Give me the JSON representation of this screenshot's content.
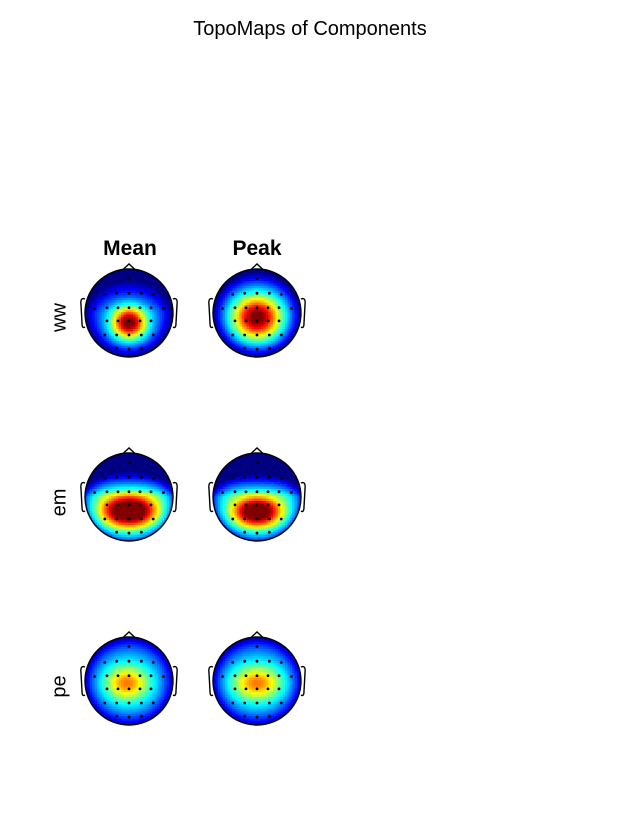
{
  "title": "TopoMaps of Components",
  "columns": [
    "Mean",
    "Peak"
  ],
  "rows": [
    {
      "label": "ww",
      "maps": [
        {
          "colormap": "jet",
          "sources": [
            {
              "u": 0.0,
              "v": 0.22,
              "sx": 0.38,
              "sy": 0.36,
              "amp": 1.0
            }
          ],
          "base": 0.32,
          "frontal_drop": 0.18
        },
        {
          "colormap": "jet",
          "sources": [
            {
              "u": 0.0,
              "v": 0.1,
              "sx": 0.55,
              "sy": 0.5,
              "amp": 1.0
            }
          ],
          "base": 0.3,
          "frontal_drop": 0.05
        }
      ]
    },
    {
      "label": "em",
      "maps": [
        {
          "colormap": "jet",
          "sources": [
            {
              "u": 0.0,
              "v": 0.32,
              "sx": 0.62,
              "sy": 0.36,
              "amp": 1.0
            }
          ],
          "base": 0.55,
          "frontal_drop": 0.55
        },
        {
          "colormap": "jet",
          "sources": [
            {
              "u": 0.0,
              "v": 0.34,
              "sx": 0.55,
              "sy": 0.34,
              "amp": 0.95
            }
          ],
          "base": 0.52,
          "frontal_drop": 0.58
        }
      ]
    },
    {
      "label": "pe",
      "maps": [
        {
          "colormap": "jet",
          "sources": [
            {
              "u": -0.05,
              "v": 0.05,
              "sx": 0.48,
              "sy": 0.38,
              "amp": 0.55
            }
          ],
          "base": 0.4,
          "frontal_drop": 0.02
        },
        {
          "colormap": "jet",
          "sources": [
            {
              "u": 0.0,
              "v": 0.05,
              "sx": 0.55,
              "sy": 0.38,
              "amp": 0.55
            }
          ],
          "base": 0.4,
          "frontal_drop": 0.02
        }
      ]
    }
  ],
  "colors": {
    "background": "#ffffff",
    "head_outline": "#000000",
    "electrode": "#000000"
  }
}
